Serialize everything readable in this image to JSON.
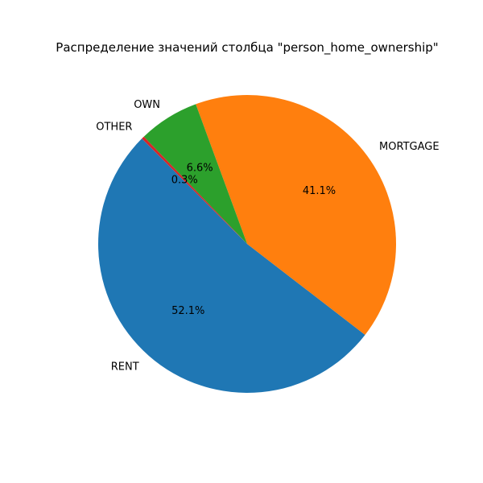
{
  "chart_data": {
    "type": "pie",
    "title": "Распределение значений столбца \"person_home_ownership\"",
    "categories": [
      "RENT",
      "MORTGAGE",
      "OWN",
      "OTHER"
    ],
    "values": [
      52.1,
      41.1,
      6.6,
      0.3
    ],
    "percent_labels": [
      "52.1%",
      "41.1%",
      "6.6%",
      "0.3%"
    ],
    "colors": [
      "#1f77b4",
      "#ff7f0e",
      "#2ca02c",
      "#d62728"
    ],
    "start_angle_deg": 135,
    "direction": "counterclockwise"
  }
}
